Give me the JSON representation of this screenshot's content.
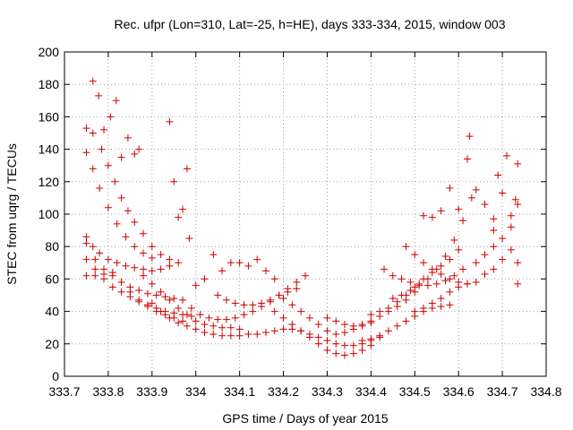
{
  "chart_data": {
    "type": "scatter",
    "title": "Rec. ufpr (Lon=310, Lat=-25, h=HE), days 333-334, 2015, window 003",
    "xlabel": "GPS time / Days of year 2015",
    "ylabel": "STEC from uqrg / TECUs",
    "xlim": [
      333.7,
      334.8
    ],
    "ylim": [
      0,
      200
    ],
    "xticks": [
      "333.7",
      "333.8",
      "333.9",
      "334",
      "334.1",
      "334.2",
      "334.3",
      "334.4",
      "334.5",
      "334.6",
      "334.7",
      "334.8"
    ],
    "yticks": [
      "0",
      "20",
      "40",
      "60",
      "80",
      "100",
      "120",
      "140",
      "160",
      "180",
      "200"
    ],
    "grid": true,
    "marker": "plus",
    "color": "#cc0000",
    "series": [
      {
        "values": [
          [
            333.75,
            153
          ],
          [
            333.765,
            150
          ],
          [
            333.785,
            140
          ],
          [
            333.8,
            130
          ],
          [
            333.815,
            120
          ],
          [
            333.83,
            110
          ],
          [
            333.845,
            102
          ],
          [
            333.86,
            95
          ],
          [
            333.88,
            88
          ],
          [
            333.9,
            80
          ],
          [
            333.92,
            75
          ],
          [
            333.94,
            72
          ]
        ]
      },
      {
        "values": [
          [
            333.75,
            138
          ],
          [
            333.765,
            128
          ],
          [
            333.78,
            116
          ],
          [
            333.8,
            104
          ],
          [
            333.82,
            94
          ],
          [
            333.84,
            86
          ],
          [
            333.86,
            80
          ],
          [
            333.88,
            76
          ],
          [
            333.9,
            73
          ]
        ]
      },
      {
        "values": [
          [
            333.765,
            182
          ],
          [
            333.778,
            173
          ],
          [
            333.79,
            152
          ],
          [
            333.805,
            160
          ],
          [
            333.818,
            170
          ],
          [
            333.83,
            135
          ],
          [
            333.845,
            147
          ],
          [
            333.86,
            137
          ],
          [
            333.87,
            140
          ]
        ]
      },
      {
        "values": [
          [
            333.75,
            86
          ],
          [
            333.765,
            80
          ],
          [
            333.78,
            76
          ],
          [
            333.8,
            72
          ],
          [
            333.82,
            70
          ],
          [
            333.84,
            68
          ],
          [
            333.86,
            67
          ],
          [
            333.88,
            66
          ],
          [
            333.9,
            65
          ],
          [
            333.92,
            66
          ],
          [
            333.94,
            68
          ],
          [
            333.96,
            70
          ]
        ]
      },
      {
        "values": [
          [
            333.75,
            82
          ],
          [
            333.77,
            72
          ],
          [
            333.79,
            66
          ],
          [
            333.81,
            62
          ],
          [
            333.83,
            58
          ],
          [
            333.85,
            55
          ],
          [
            333.87,
            53
          ],
          [
            333.89,
            51
          ],
          [
            333.91,
            50
          ],
          [
            333.93,
            49
          ],
          [
            333.95,
            48
          ],
          [
            333.97,
            47
          ]
        ]
      },
      {
        "values": [
          [
            333.75,
            72
          ],
          [
            333.77,
            66
          ],
          [
            333.79,
            60
          ],
          [
            333.81,
            55
          ],
          [
            333.83,
            52
          ],
          [
            333.85,
            49
          ],
          [
            333.87,
            46
          ],
          [
            333.89,
            44
          ],
          [
            333.91,
            42
          ],
          [
            333.93,
            40
          ],
          [
            333.95,
            39
          ],
          [
            333.97,
            38
          ],
          [
            333.99,
            37
          ]
        ]
      },
      {
        "values": [
          [
            333.75,
            62
          ],
          [
            333.77,
            62
          ],
          [
            333.79,
            63
          ],
          [
            333.81,
            64
          ],
          [
            333.83,
            58
          ],
          [
            333.85,
            52
          ],
          [
            333.87,
            47
          ],
          [
            333.89,
            43
          ],
          [
            333.91,
            40
          ],
          [
            333.93,
            38
          ],
          [
            333.95,
            36
          ],
          [
            333.97,
            34
          ]
        ]
      },
      {
        "values": [
          [
            333.88,
            62
          ],
          [
            333.9,
            57
          ],
          [
            333.92,
            52
          ],
          [
            333.94,
            47
          ],
          [
            333.96,
            42
          ],
          [
            333.98,
            38
          ],
          [
            334.0,
            34
          ],
          [
            334.02,
            32
          ],
          [
            334.04,
            31
          ],
          [
            334.06,
            30
          ],
          [
            334.08,
            30
          ],
          [
            334.1,
            29
          ]
        ]
      },
      {
        "values": [
          [
            333.9,
            45
          ],
          [
            333.92,
            40
          ],
          [
            333.94,
            36
          ],
          [
            333.96,
            33
          ],
          [
            333.98,
            31
          ],
          [
            334.0,
            29
          ],
          [
            334.02,
            27
          ],
          [
            334.04,
            26
          ],
          [
            334.06,
            25
          ],
          [
            334.08,
            25
          ],
          [
            334.1,
            25
          ],
          [
            334.12,
            26
          ]
        ]
      },
      {
        "values": [
          [
            333.94,
            157
          ],
          [
            333.95,
            120
          ],
          [
            333.96,
            98
          ],
          [
            333.97,
            103
          ],
          [
            333.98,
            128
          ],
          [
            333.985,
            85
          ]
        ]
      },
      {
        "values": [
          [
            333.99,
            42
          ],
          [
            334.01,
            38
          ],
          [
            334.03,
            36
          ],
          [
            334.05,
            35
          ],
          [
            334.07,
            35
          ],
          [
            334.09,
            36
          ],
          [
            334.11,
            38
          ],
          [
            334.13,
            40
          ],
          [
            334.15,
            43
          ],
          [
            334.17,
            46
          ],
          [
            334.19,
            50
          ],
          [
            334.21,
            54
          ],
          [
            334.23,
            58
          ],
          [
            334.25,
            62
          ]
        ]
      },
      {
        "values": [
          [
            334.0,
            56
          ],
          [
            334.02,
            60
          ],
          [
            334.04,
            75
          ],
          [
            334.06,
            65
          ],
          [
            334.08,
            70
          ],
          [
            334.1,
            70
          ],
          [
            334.12,
            68
          ],
          [
            334.14,
            72
          ],
          [
            334.16,
            65
          ],
          [
            334.18,
            60
          ]
        ]
      },
      {
        "values": [
          [
            334.05,
            50
          ],
          [
            334.07,
            47
          ],
          [
            334.09,
            45
          ],
          [
            334.11,
            44
          ],
          [
            334.13,
            44
          ],
          [
            334.15,
            45
          ],
          [
            334.17,
            47
          ],
          [
            334.19,
            50
          ],
          [
            334.21,
            52
          ],
          [
            334.23,
            54
          ]
        ]
      },
      {
        "values": [
          [
            334.12,
            26
          ],
          [
            334.14,
            26
          ],
          [
            334.16,
            27
          ],
          [
            334.18,
            28
          ],
          [
            334.2,
            29
          ],
          [
            334.22,
            29
          ],
          [
            334.24,
            28
          ],
          [
            334.26,
            26
          ],
          [
            334.28,
            24
          ],
          [
            334.3,
            22
          ],
          [
            334.32,
            20
          ],
          [
            334.34,
            19
          ],
          [
            334.36,
            19
          ],
          [
            334.38,
            20
          ],
          [
            334.4,
            22
          ],
          [
            334.42,
            24
          ]
        ]
      },
      {
        "values": [
          [
            334.18,
            40
          ],
          [
            334.2,
            36
          ],
          [
            334.22,
            32
          ],
          [
            334.24,
            28
          ],
          [
            334.26,
            24
          ],
          [
            334.28,
            20
          ],
          [
            334.3,
            16
          ],
          [
            334.32,
            14
          ],
          [
            334.34,
            13
          ],
          [
            334.36,
            14
          ],
          [
            334.38,
            16
          ],
          [
            334.4,
            19
          ]
        ]
      },
      {
        "values": [
          [
            334.2,
            48
          ],
          [
            334.22,
            44
          ],
          [
            334.24,
            40
          ],
          [
            334.26,
            36
          ],
          [
            334.28,
            32
          ],
          [
            334.3,
            28
          ],
          [
            334.32,
            26
          ],
          [
            334.34,
            27
          ],
          [
            334.36,
            29
          ],
          [
            334.38,
            31
          ],
          [
            334.4,
            33
          ]
        ]
      },
      {
        "values": [
          [
            334.3,
            36
          ],
          [
            334.32,
            34
          ],
          [
            334.34,
            32
          ],
          [
            334.36,
            31
          ],
          [
            334.38,
            32
          ],
          [
            334.4,
            34
          ],
          [
            334.42,
            37
          ],
          [
            334.44,
            40
          ],
          [
            334.46,
            43
          ],
          [
            334.48,
            47
          ],
          [
            334.5,
            52
          ]
        ]
      },
      {
        "values": [
          [
            334.38,
            22
          ],
          [
            334.4,
            23
          ],
          [
            334.42,
            25
          ],
          [
            334.44,
            28
          ],
          [
            334.46,
            31
          ],
          [
            334.48,
            34
          ],
          [
            334.5,
            37
          ],
          [
            334.52,
            40
          ],
          [
            334.54,
            42
          ],
          [
            334.56,
            43
          ],
          [
            334.58,
            44
          ]
        ]
      },
      {
        "values": [
          [
            334.4,
            38
          ],
          [
            334.42,
            40
          ],
          [
            334.44,
            42
          ],
          [
            334.46,
            46
          ],
          [
            334.48,
            50
          ],
          [
            334.5,
            55
          ],
          [
            334.52,
            60
          ],
          [
            334.54,
            64
          ],
          [
            334.56,
            68
          ],
          [
            334.58,
            72
          ],
          [
            334.6,
            78
          ]
        ]
      },
      {
        "values": [
          [
            334.43,
            66
          ],
          [
            334.45,
            62
          ],
          [
            334.47,
            60
          ],
          [
            334.49,
            58
          ],
          [
            334.51,
            57
          ],
          [
            334.53,
            56
          ],
          [
            334.55,
            57
          ],
          [
            334.57,
            59
          ],
          [
            334.59,
            62
          ],
          [
            334.61,
            66
          ]
        ]
      },
      {
        "values": [
          [
            334.45,
            48
          ],
          [
            334.47,
            50
          ],
          [
            334.49,
            53
          ],
          [
            334.51,
            56
          ],
          [
            334.53,
            60
          ],
          [
            334.55,
            66
          ],
          [
            334.57,
            74
          ],
          [
            334.59,
            84
          ],
          [
            334.61,
            96
          ],
          [
            334.63,
            110
          ]
        ]
      },
      {
        "values": [
          [
            334.5,
            40
          ],
          [
            334.52,
            42
          ],
          [
            334.54,
            45
          ],
          [
            334.56,
            48
          ],
          [
            334.58,
            52
          ],
          [
            334.6,
            55
          ],
          [
            334.62,
            57
          ],
          [
            334.64,
            58
          ]
        ]
      },
      {
        "values": [
          [
            334.48,
            80
          ],
          [
            334.5,
            75
          ],
          [
            334.52,
            70
          ],
          [
            334.54,
            66
          ],
          [
            334.56,
            63
          ],
          [
            334.58,
            60
          ],
          [
            334.6,
            58
          ],
          [
            334.62,
            57
          ]
        ]
      },
      {
        "values": [
          [
            334.52,
            99
          ],
          [
            334.54,
            98
          ],
          [
            334.56,
            102
          ],
          [
            334.58,
            116
          ],
          [
            334.6,
            103
          ],
          [
            334.62,
            134
          ],
          [
            334.625,
            148
          ],
          [
            334.64,
            115
          ],
          [
            334.66,
            106
          ],
          [
            334.68,
            97
          ]
        ]
      },
      {
        "values": [
          [
            334.64,
            70
          ],
          [
            334.66,
            75
          ],
          [
            334.68,
            80
          ],
          [
            334.7,
            85
          ],
          [
            334.72,
            92
          ],
          [
            334.735,
            106
          ],
          [
            334.735,
            131
          ]
        ]
      },
      {
        "values": [
          [
            334.66,
            63
          ],
          [
            334.68,
            66
          ],
          [
            334.7,
            72
          ],
          [
            334.72,
            78
          ],
          [
            334.735,
            70
          ],
          [
            334.735,
            57
          ]
        ]
      },
      {
        "values": [
          [
            334.68,
            90
          ],
          [
            334.69,
            124
          ],
          [
            334.7,
            113
          ],
          [
            334.71,
            136
          ],
          [
            334.72,
            99
          ],
          [
            334.73,
            109
          ]
        ]
      }
    ]
  }
}
